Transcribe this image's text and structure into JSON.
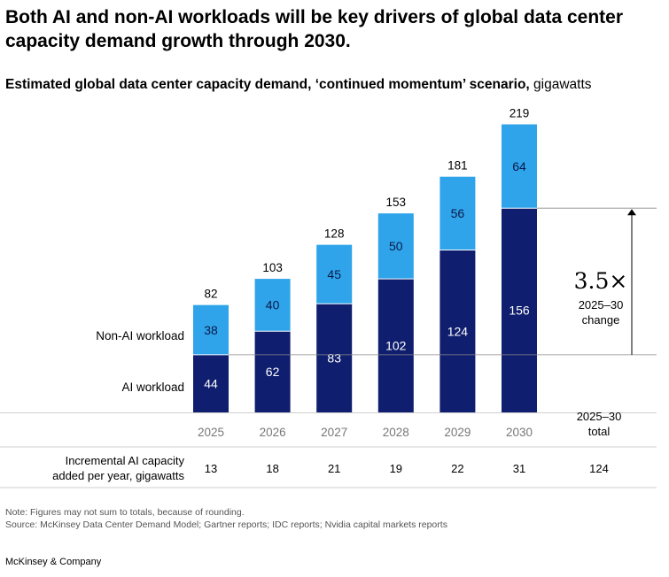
{
  "title": "Both AI and non-AI workloads will be key drivers of global data center capacity demand growth through 2030.",
  "subtitle": {
    "bold": "Estimated global data center capacity demand, ‘continued momentum’ scenario,",
    "unit": " gigawatts"
  },
  "chart_data": {
    "type": "bar",
    "stacked": true,
    "categories": [
      "2025",
      "2026",
      "2027",
      "2028",
      "2029",
      "2030"
    ],
    "series": [
      {
        "name": "AI workload",
        "values": [
          44,
          62,
          83,
          102,
          124,
          156
        ],
        "color": "#0f1e6e"
      },
      {
        "name": "Non-AI workload",
        "values": [
          38,
          40,
          45,
          50,
          56,
          64
        ],
        "color": "#2fa4ea"
      }
    ],
    "totals": [
      82,
      103,
      128,
      153,
      181,
      219
    ],
    "ylim": [
      0,
      219
    ],
    "annotation": {
      "value": "3.5×",
      "label_line1": "2025–30",
      "label_line2": "change"
    },
    "total_column": {
      "header_line1": "2025–30",
      "header_line2": "total",
      "value": "124"
    },
    "incremental_row": {
      "label_line1": "Incremental AI capacity",
      "label_line2": "added per year, gigawatts",
      "values": [
        "13",
        "18",
        "21",
        "19",
        "22",
        "31"
      ]
    }
  },
  "footnotes": {
    "note": "Note: Figures may not sum to totals, because of rounding.",
    "source": "Source: McKinsey Data Center Demand Model; Gartner reports; IDC reports; Nvidia capital markets reports"
  },
  "brand": "McKinsey & Company"
}
